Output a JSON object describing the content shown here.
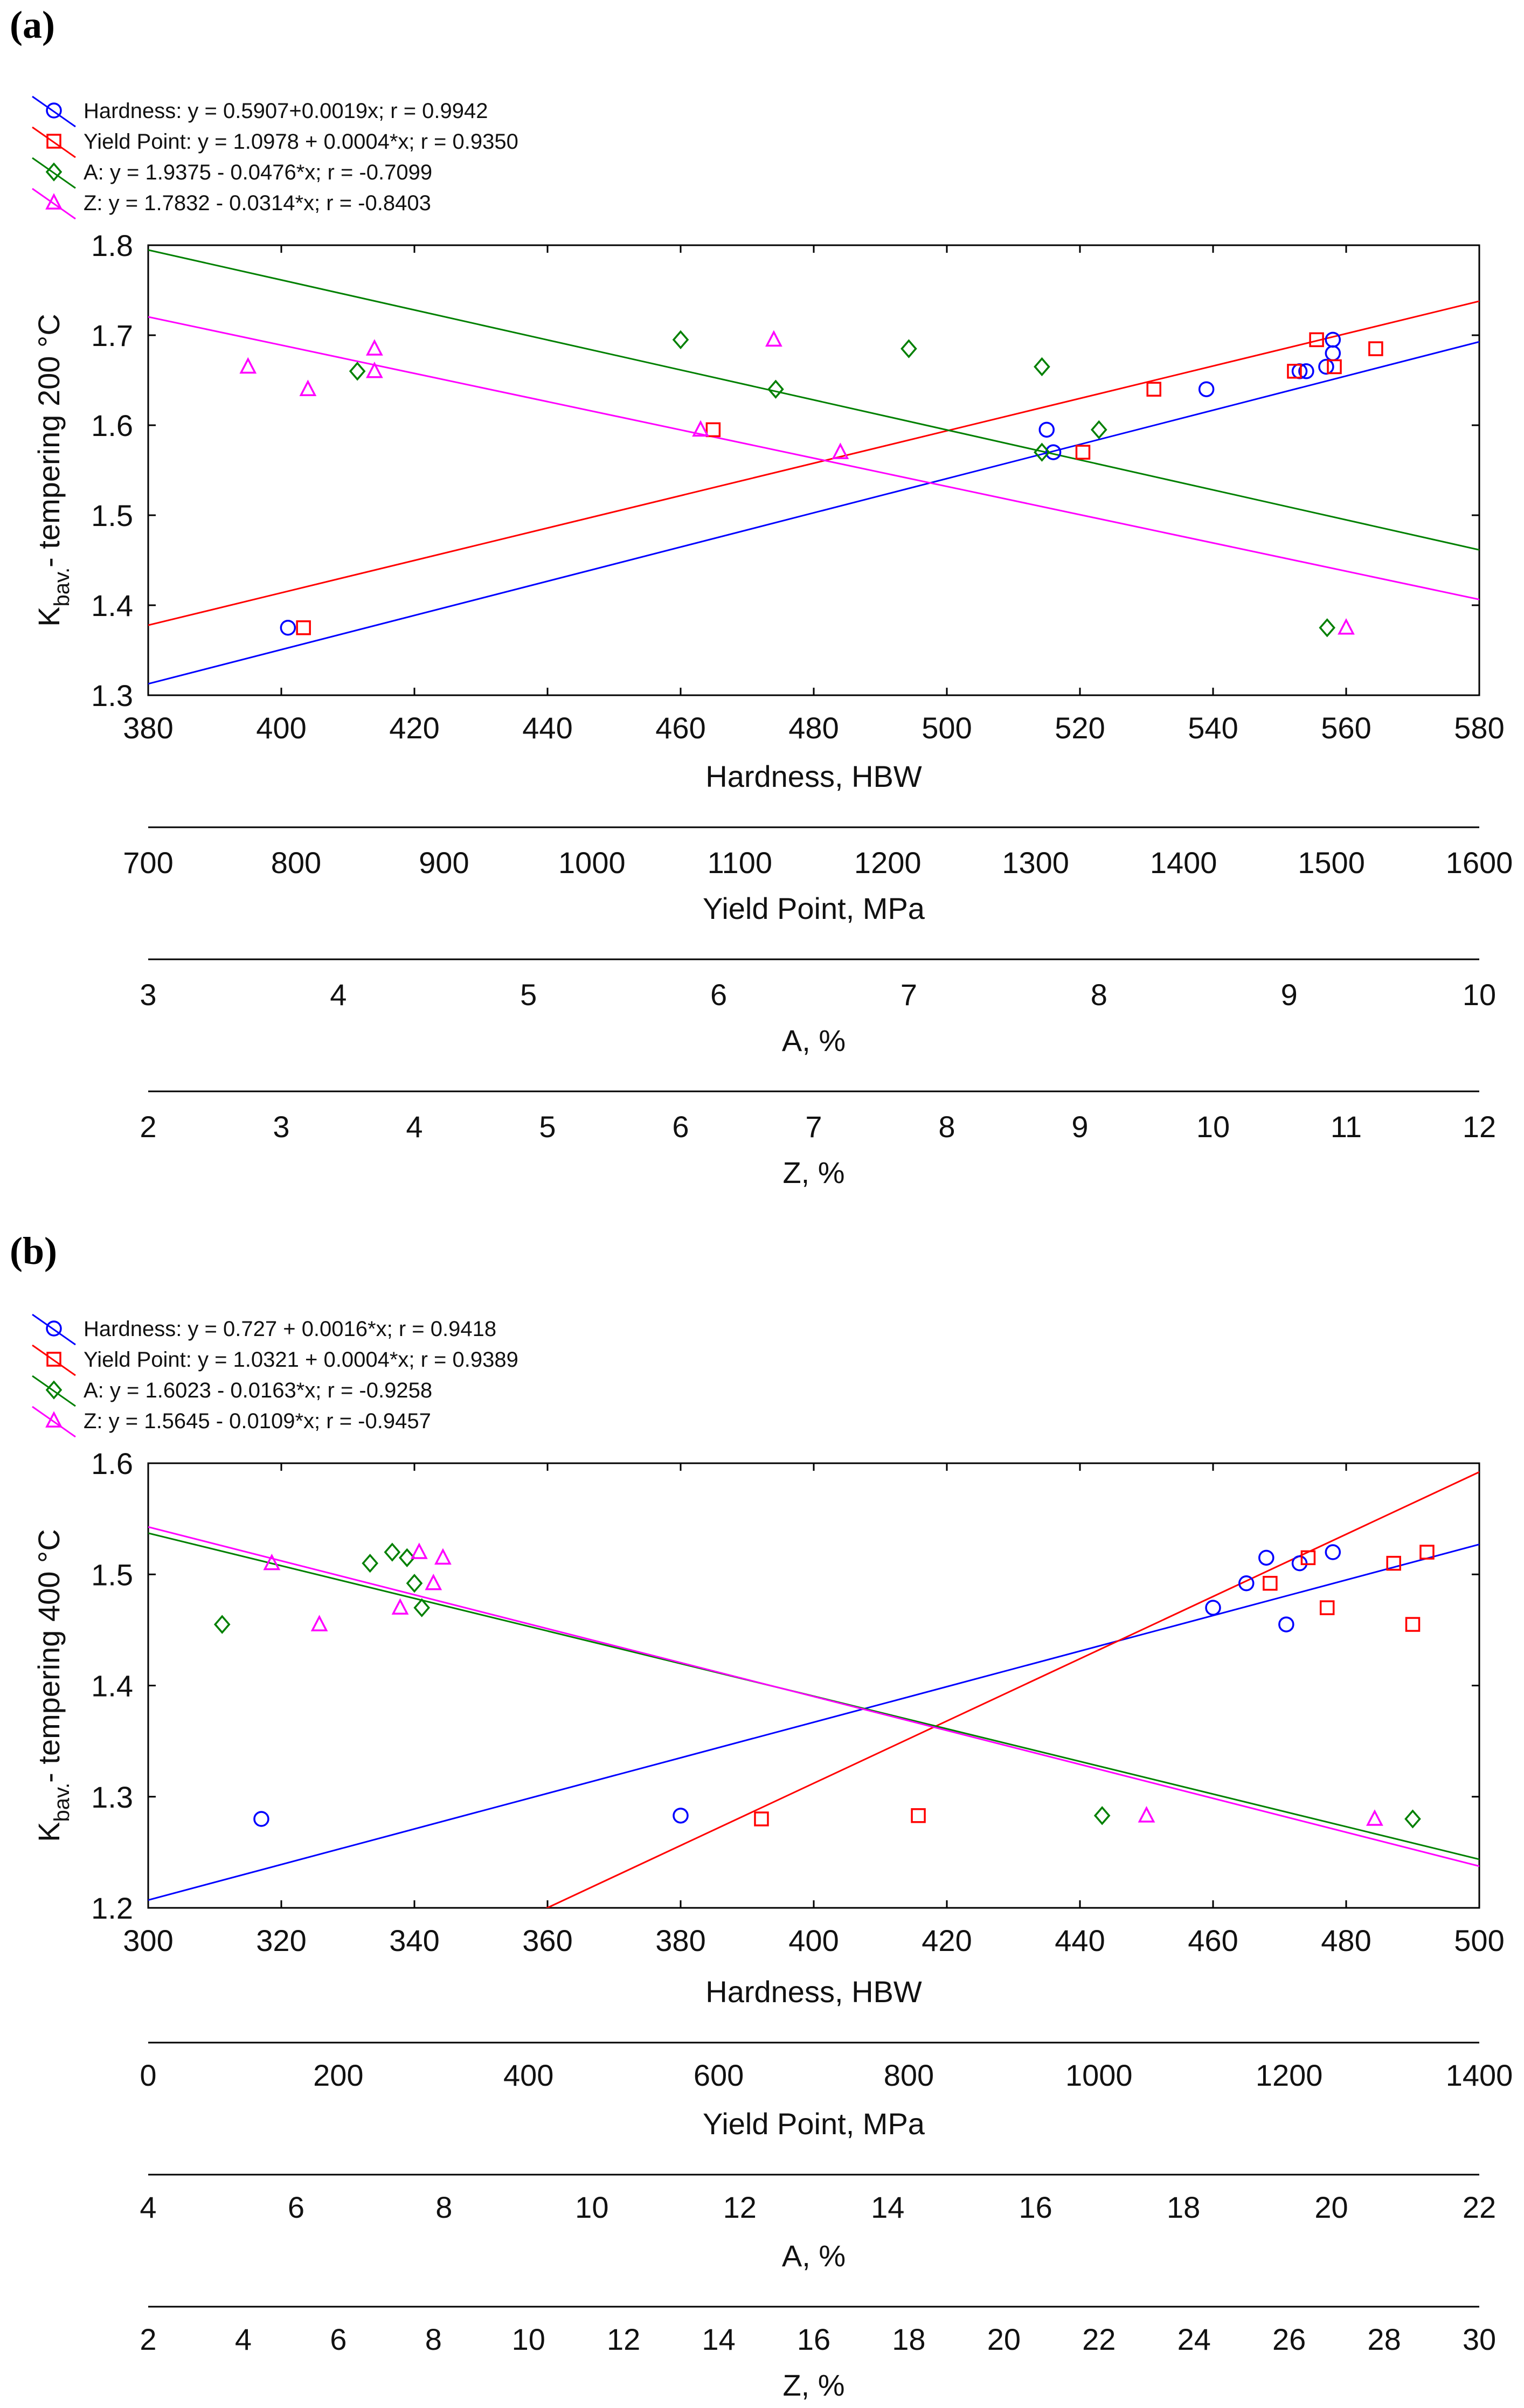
{
  "chart_data": [
    {
      "type": "scatter",
      "panel_label": "(a)",
      "ylabel": "K",
      "ylabel_sub": "bav.",
      "ylabel_rest": "- tempering 200 °C",
      "ylim": [
        1.3,
        1.8
      ],
      "yticks": [
        "1.3",
        "1.4",
        "1.5",
        "1.6",
        "1.7",
        "1.8"
      ],
      "axes": [
        {
          "label": "Hardness, HBW",
          "range": [
            380,
            580
          ],
          "ticks": [
            "380",
            "400",
            "420",
            "440",
            "460",
            "480",
            "500",
            "520",
            "540",
            "560",
            "580"
          ]
        },
        {
          "label": "Yield Point, MPa",
          "range": [
            700,
            1600
          ],
          "ticks": [
            "700",
            "800",
            "900",
            "1000",
            "1100",
            "1200",
            "1300",
            "1400",
            "1500",
            "1600"
          ]
        },
        {
          "label": "A, %",
          "range": [
            3,
            10
          ],
          "ticks": [
            "3",
            "4",
            "5",
            "6",
            "7",
            "8",
            "9",
            "10"
          ]
        },
        {
          "label": "Z, %",
          "range": [
            2,
            12
          ],
          "ticks": [
            "2",
            "3",
            "4",
            "5",
            "6",
            "7",
            "8",
            "9",
            "10",
            "11",
            "12"
          ]
        }
      ],
      "series": [
        {
          "name": "Hardness",
          "legend": "Hardness: y = 0.5907+0.0019x; r = 0.9942",
          "color": "#0000ff",
          "marker": "circle",
          "axis": 0,
          "intercept": 0.5907,
          "slope": 0.0019,
          "points": [
            [
              401,
              1.375
            ],
            [
              515,
              1.595
            ],
            [
              516,
              1.57
            ],
            [
              539,
              1.64
            ],
            [
              553,
              1.66
            ],
            [
              554,
              1.66
            ],
            [
              557,
              1.665
            ],
            [
              558,
              1.68
            ],
            [
              558,
              1.695
            ]
          ]
        },
        {
          "name": "Yield Point",
          "legend": "Yield Point: y = 1.0978 + 0.0004*x; r = 0.9350",
          "color": "#ff0000",
          "marker": "square",
          "axis": 1,
          "intercept": 1.0978,
          "slope": 0.0004,
          "points": [
            [
              805,
              1.375
            ],
            [
              1082,
              1.595
            ],
            [
              1332,
              1.57
            ],
            [
              1380,
              1.64
            ],
            [
              1475,
              1.66
            ],
            [
              1490,
              1.695
            ],
            [
              1502,
              1.665
            ],
            [
              1530,
              1.685
            ]
          ]
        },
        {
          "name": "A",
          "legend": "A: y = 1.9375 - 0.0476*x; r = -0.7099",
          "color": "#008000",
          "marker": "diamond",
          "axis": 2,
          "intercept": 1.9375,
          "slope": -0.0476,
          "points": [
            [
              4.1,
              1.66
            ],
            [
              5.8,
              1.695
            ],
            [
              6.3,
              1.64
            ],
            [
              7.0,
              1.685
            ],
            [
              7.7,
              1.665
            ],
            [
              7.7,
              1.57
            ],
            [
              8.0,
              1.595
            ],
            [
              9.2,
              1.375
            ]
          ]
        },
        {
          "name": "Z",
          "legend": "Z: y = 1.7832 - 0.0314*x; r = -0.8403",
          "color": "#ff00ff",
          "marker": "triangle",
          "axis": 3,
          "intercept": 1.7832,
          "slope": -0.0314,
          "points": [
            [
              2.75,
              1.665
            ],
            [
              3.2,
              1.64
            ],
            [
              3.7,
              1.685
            ],
            [
              3.7,
              1.66
            ],
            [
              6.15,
              1.595
            ],
            [
              6.7,
              1.695
            ],
            [
              7.2,
              1.57
            ],
            [
              11.0,
              1.375
            ]
          ]
        }
      ]
    },
    {
      "type": "scatter",
      "panel_label": "(b)",
      "ylabel": "K",
      "ylabel_sub": "bav.",
      "ylabel_rest": "- tempering 400 °C",
      "ylim": [
        1.2,
        1.6
      ],
      "yticks": [
        "1.2",
        "1.3",
        "1.4",
        "1.5",
        "1.6"
      ],
      "axes": [
        {
          "label": "Hardness, HBW",
          "range": [
            300,
            500
          ],
          "ticks": [
            "300",
            "320",
            "340",
            "360",
            "380",
            "400",
            "420",
            "440",
            "460",
            "480",
            "500"
          ]
        },
        {
          "label": "Yield Point, MPa",
          "range": [
            0,
            1400
          ],
          "ticks": [
            "0",
            "200",
            "400",
            "600",
            "800",
            "1000",
            "1200",
            "1400"
          ]
        },
        {
          "label": "A, %",
          "range": [
            4,
            22
          ],
          "ticks": [
            "4",
            "6",
            "8",
            "10",
            "12",
            "14",
            "16",
            "18",
            "20",
            "22"
          ]
        },
        {
          "label": "Z, %",
          "range": [
            2,
            30
          ],
          "ticks": [
            "2",
            "4",
            "6",
            "8",
            "10",
            "12",
            "14",
            "16",
            "18",
            "20",
            "22",
            "24",
            "26",
            "28",
            "30"
          ]
        }
      ],
      "series": [
        {
          "name": "Hardness",
          "legend": "Hardness: y = 0.727 + 0.0016*x; r = 0.9418",
          "color": "#0000ff",
          "marker": "circle",
          "axis": 0,
          "intercept": 0.727,
          "slope": 0.0016,
          "points": [
            [
              317,
              1.28
            ],
            [
              380,
              1.283
            ],
            [
              460,
              1.47
            ],
            [
              465,
              1.492
            ],
            [
              468,
              1.515
            ],
            [
              471,
              1.455
            ],
            [
              473,
              1.51
            ],
            [
              478,
              1.52
            ]
          ]
        },
        {
          "name": "Yield Point",
          "legend": "Yield Point: y = 1.0321 + 0.0004*x; r = 0.9389",
          "color": "#ff0000",
          "marker": "square",
          "axis": 1,
          "intercept": 1.0321,
          "slope": 0.0004,
          "points": [
            [
              645,
              1.28
            ],
            [
              810,
              1.283
            ],
            [
              1180,
              1.492
            ],
            [
              1220,
              1.515
            ],
            [
              1240,
              1.47
            ],
            [
              1310,
              1.51
            ],
            [
              1330,
              1.455
            ],
            [
              1345,
              1.52
            ]
          ]
        },
        {
          "name": "A",
          "legend": "A: y = 1.6023 - 0.0163*x; r = -0.9258",
          "color": "#008000",
          "marker": "diamond",
          "axis": 2,
          "intercept": 1.6023,
          "slope": -0.0163,
          "points": [
            [
              5.0,
              1.455
            ],
            [
              7.0,
              1.51
            ],
            [
              7.3,
              1.52
            ],
            [
              7.5,
              1.515
            ],
            [
              7.6,
              1.492
            ],
            [
              7.7,
              1.47
            ],
            [
              16.9,
              1.283
            ],
            [
              21.1,
              1.28
            ]
          ]
        },
        {
          "name": "Z",
          "legend": "Z: y = 1.5645 - 0.0109*x; r = -0.9457",
          "color": "#ff00ff",
          "marker": "triangle",
          "axis": 3,
          "intercept": 1.5645,
          "slope": -0.0109,
          "points": [
            [
              4.6,
              1.51
            ],
            [
              5.6,
              1.455
            ],
            [
              7.3,
              1.47
            ],
            [
              7.7,
              1.52
            ],
            [
              8.0,
              1.492
            ],
            [
              8.2,
              1.515
            ],
            [
              23.0,
              1.283
            ],
            [
              27.8,
              1.28
            ]
          ]
        }
      ]
    }
  ]
}
